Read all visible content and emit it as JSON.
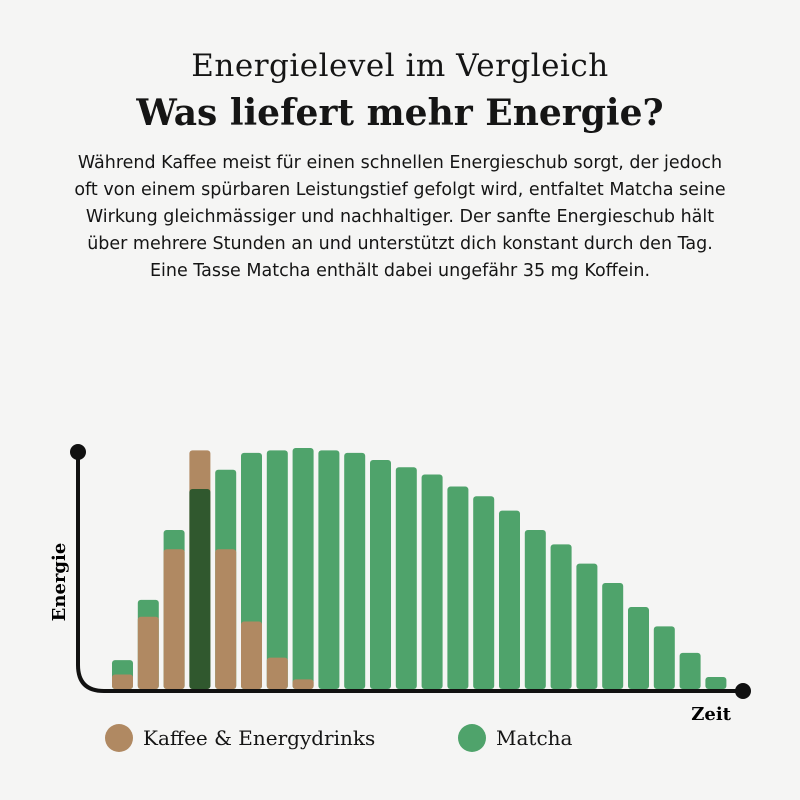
{
  "header": {
    "subtitle": "Energielevel im Vergleich",
    "title": "Was liefert mehr Energie?",
    "description": "Während Kaffee meist für einen schnellen Energieschub sorgt, der jedoch oft von einem spürbaren Leistungstief gefolgt wird, entfaltet Matcha seine Wirkung gleichmässiger und nachhaltiger. Der sanfte Energieschub hält über mehrere Stunden an und unterstützt dich konstant durch den Tag. Eine Tasse Matcha enthält dabei ungefähr 35 mg Koffein."
  },
  "chart_data": {
    "type": "bar",
    "xlabel": "Zeit",
    "ylabel": "Energie",
    "ylim": [
      0,
      100
    ],
    "grid": false,
    "legend_position": "bottom",
    "colors": {
      "coffee": "#b08962",
      "matcha": "#4fa36b",
      "overlap": "#30582e"
    },
    "series": [
      {
        "name": "Kaffee & Energydrinks",
        "values": [
          6,
          30,
          58,
          99,
          58,
          28,
          13,
          4,
          0,
          0,
          0,
          0,
          0,
          0,
          0,
          0,
          0,
          0,
          0,
          0,
          0,
          0,
          0,
          0
        ]
      },
      {
        "name": "Matcha",
        "values": [
          12,
          37,
          66,
          83,
          91,
          98,
          99,
          100,
          99,
          98,
          95,
          92,
          89,
          84,
          80,
          74,
          66,
          60,
          52,
          44,
          34,
          26,
          15,
          5
        ]
      }
    ]
  }
}
